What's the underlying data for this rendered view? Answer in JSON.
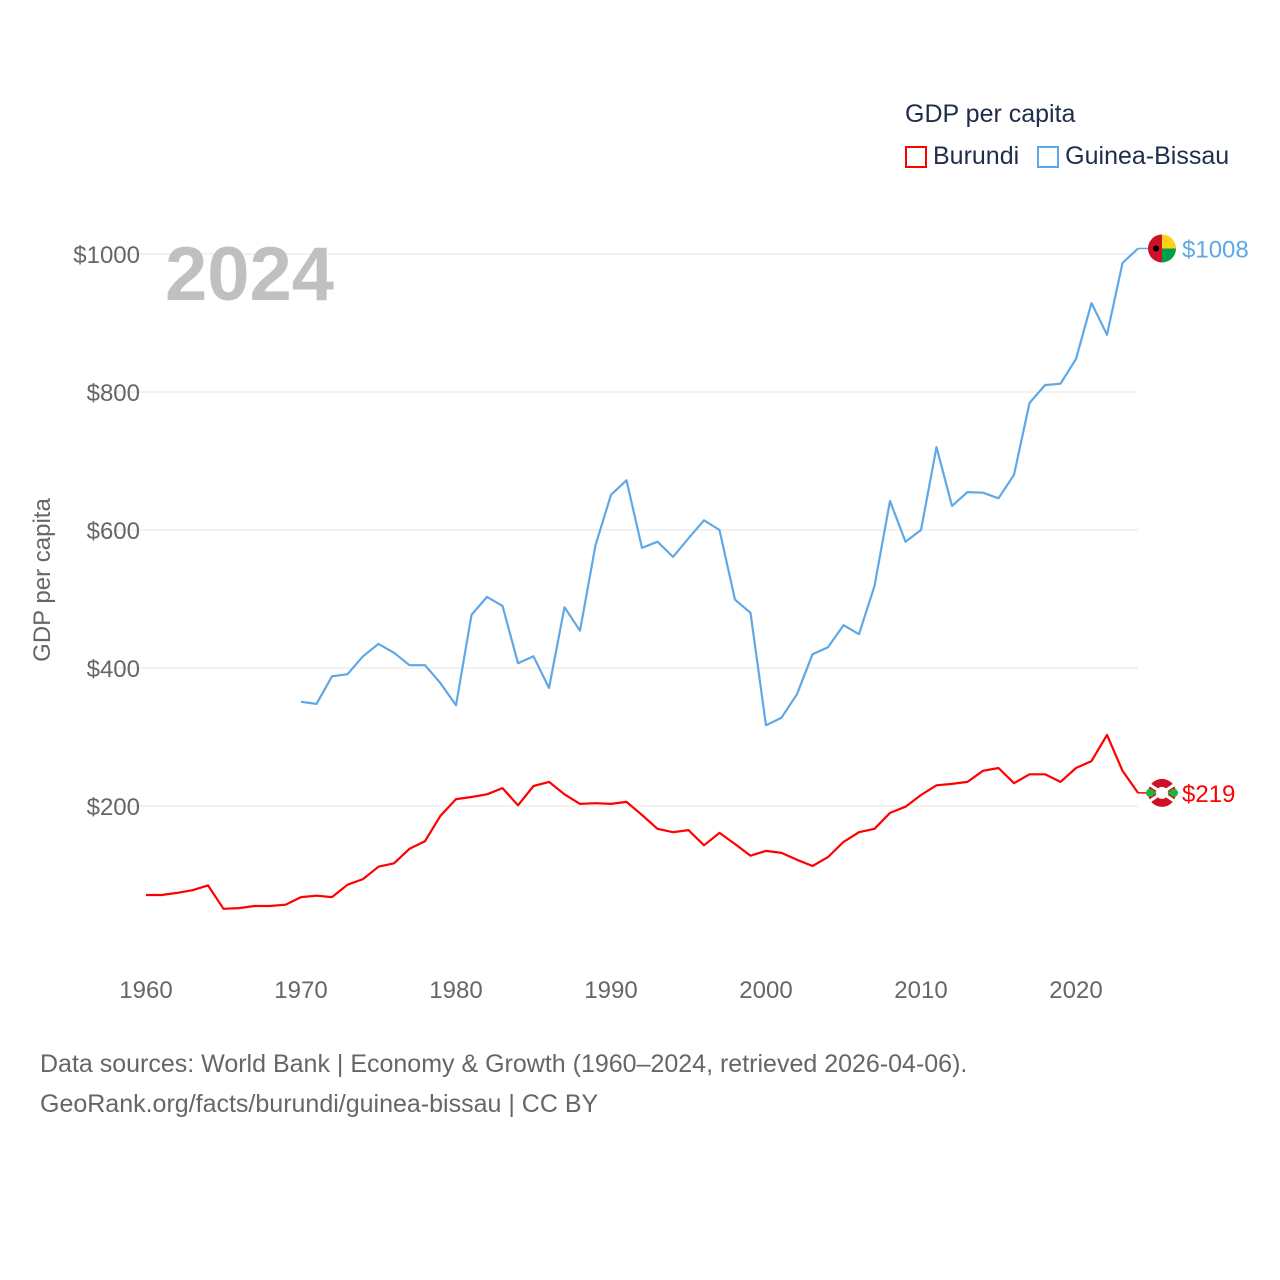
{
  "chart_data": {
    "type": "line",
    "title": "GDP per capita",
    "ylabel": "GDP per capita",
    "xlabel": "",
    "year_label": "2024",
    "ylim": [
      0,
      1080
    ],
    "xlim": [
      1960,
      2024
    ],
    "yticks": [
      200,
      400,
      600,
      800,
      1000
    ],
    "ytick_labels": [
      "$200",
      "$400",
      "$600",
      "$800",
      "$1000"
    ],
    "xticks": [
      1960,
      1970,
      1980,
      1990,
      2000,
      2010,
      2020
    ],
    "xtick_labels": [
      "1960",
      "1970",
      "1980",
      "1990",
      "2000",
      "2010",
      "2020"
    ],
    "grid": true,
    "legend_placement": "top-right",
    "series": [
      {
        "name": "Burundi",
        "color": "#ff0000",
        "end_label": "$219",
        "flag": "burundi-flag",
        "start_year": 1960,
        "values": [
          71,
          71,
          74,
          78,
          85,
          51,
          52,
          55,
          55,
          57,
          68,
          70,
          68,
          86,
          94,
          112,
          117,
          138,
          149,
          186,
          210,
          213,
          217,
          226,
          201,
          229,
          235,
          217,
          203,
          204,
          203,
          206,
          187,
          167,
          162,
          165,
          143,
          161,
          145,
          128,
          135,
          132,
          122,
          113,
          126,
          148,
          162,
          167,
          190,
          199,
          216,
          230,
          232,
          235,
          251,
          255,
          233,
          246,
          246,
          235,
          255,
          265,
          303,
          251,
          219
        ]
      },
      {
        "name": "Guinea-Bissau",
        "color": "#5fa8e8",
        "end_label": "$1008",
        "flag": "guinea-bissau-flag",
        "start_year": 1970,
        "values": [
          351,
          348,
          388,
          391,
          417,
          435,
          422,
          404,
          404,
          378,
          346,
          477,
          503,
          490,
          407,
          417,
          371,
          488,
          454,
          578,
          651,
          672,
          574,
          583,
          561,
          588,
          614,
          600,
          499,
          480,
          317,
          328,
          362,
          420,
          430,
          462,
          449,
          519,
          642,
          583,
          600,
          720,
          635,
          655,
          654,
          646,
          680,
          784,
          810,
          812,
          848,
          929,
          883,
          987,
          1008
        ]
      }
    ]
  },
  "footer": {
    "line1": "Data sources: World Bank | Economy & Growth (1960–2024, retrieved 2026-04-06).",
    "line2": "GeoRank.org/facts/burundi/guinea-bissau | CC BY"
  }
}
